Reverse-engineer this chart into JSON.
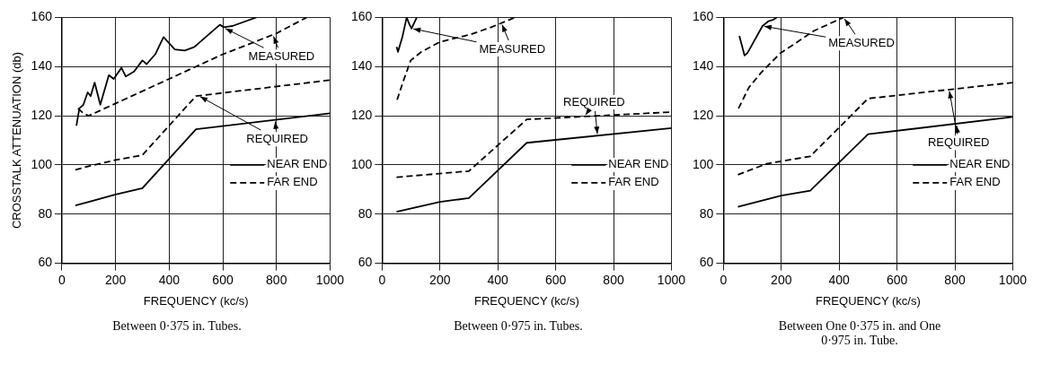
{
  "chart_data": [
    {
      "type": "line",
      "title": "Between 0·375 in. Tubes.",
      "xlabel": "FREQUENCY (kc/s)",
      "ylabel": "CROSSTALK ATTENUATION (db)",
      "xlim": [
        0,
        1000
      ],
      "xticks": [
        0,
        200,
        400,
        600,
        800,
        1000
      ],
      "ylim": [
        60,
        160
      ],
      "yticks": [
        60,
        80,
        100,
        120,
        140,
        160
      ],
      "grid": true,
      "legend": "right",
      "annotations": [
        {
          "text": "MEASURED",
          "x": 604,
          "y": 155.8
        },
        {
          "text": "REQUIRED",
          "x": 510,
          "y": 128.1
        }
      ],
      "series": [
        {
          "color": "#000000",
          "line_style": "solid",
          "x": [
            54,
            65,
            80,
            96,
            107,
            122,
            143,
            175,
            193,
            222,
            238,
            269,
            300,
            316,
            348,
            379,
            421,
            458,
            494,
            536,
            589,
            604,
            636,
            725
          ],
          "values": [
            116,
            123,
            124.5,
            129.5,
            128,
            133.5,
            124.5,
            136.5,
            135,
            139.5,
            136,
            138,
            142.5,
            141,
            145,
            152,
            147,
            146.5,
            148,
            152,
            157,
            156,
            156.5,
            160
          ]
        },
        {
          "color": "#000000",
          "line_style": "dashed",
          "x": [
            60,
            80,
            100,
            200,
            400,
            600,
            800,
            913
          ],
          "values": [
            123,
            121,
            120,
            125,
            135,
            145,
            153.5,
            160
          ]
        },
        {
          "name": "NEAR END",
          "color": "#000000",
          "line_style": "solid",
          "x": [
            50,
            100,
            200,
            300,
            500,
            1000
          ],
          "values": [
            83.5,
            85,
            88,
            90.5,
            114.5,
            121
          ]
        },
        {
          "name": "FAR END",
          "color": "#000000",
          "line_style": "dashed",
          "x": [
            50,
            100,
            200,
            300,
            500,
            1000
          ],
          "values": [
            98,
            99.5,
            102,
            104,
            128,
            134.5
          ]
        }
      ]
    },
    {
      "type": "line",
      "title": "Between 0·975 in. Tubes.",
      "xlabel": "FREQUENCY (kc/s)",
      "xlim": [
        0,
        1000
      ],
      "xticks": [
        0,
        200,
        400,
        600,
        800,
        1000
      ],
      "ylim": [
        60,
        160
      ],
      "yticks": [
        60,
        80,
        100,
        120,
        140,
        160
      ],
      "grid": true,
      "legend": "right",
      "annotations": [
        {
          "text": "MEASURED",
          "x": 102,
          "y": 155.5
        },
        {
          "text": "REQUIRED",
          "x": 700,
          "y": 119.7
        }
      ],
      "series": [
        {
          "color": "#000000",
          "line_style": "solid",
          "x": [
            50,
            55,
            70,
            85,
            95,
            102,
            120
          ],
          "values": [
            148,
            146,
            152,
            160,
            157,
            155.5,
            160
          ]
        },
        {
          "color": "#000000",
          "line_style": "dashed",
          "x": [
            52,
            73,
            99,
            136,
            199,
            304,
            377,
            460
          ],
          "values": [
            126.5,
            134,
            142.5,
            146,
            150,
            153,
            156,
            160
          ]
        },
        {
          "name": "NEAR END",
          "color": "#000000",
          "line_style": "solid",
          "x": [
            50,
            200,
            300,
            500,
            1000
          ],
          "values": [
            81,
            85,
            86.5,
            109,
            115
          ]
        },
        {
          "name": "FAR END",
          "color": "#000000",
          "line_style": "dashed",
          "x": [
            50,
            300,
            500,
            1000
          ],
          "values": [
            95,
            97.5,
            118.5,
            121.5
          ]
        }
      ]
    },
    {
      "type": "line",
      "title": "Between One 0·375 in. and One 0·975 in. Tube.",
      "xlabel": "FREQUENCY (kc/s)",
      "xlim": [
        0,
        1000
      ],
      "xticks": [
        0,
        200,
        400,
        600,
        800,
        1000
      ],
      "ylim": [
        60,
        160
      ],
      "yticks": [
        60,
        80,
        100,
        120,
        140,
        160
      ],
      "grid": true,
      "legend": "right",
      "annotations": [
        {
          "text": "MEASURED",
          "x": 135,
          "y": 156.5
        },
        {
          "text": "REQUIRED",
          "x": 780,
          "y": 130.7
        }
      ],
      "series": [
        {
          "color": "#000000",
          "line_style": "solid",
          "x": [
            55,
            73,
            83,
            135,
            156,
            171,
            184
          ],
          "values": [
            152.5,
            144.5,
            145.5,
            156.5,
            158.5,
            159,
            160
          ]
        },
        {
          "color": "#000000",
          "line_style": "dashed",
          "x": [
            52,
            88,
            130,
            197,
            249,
            312,
            415
          ],
          "values": [
            123,
            131.5,
            137.5,
            145.5,
            149.5,
            154.5,
            160
          ]
        },
        {
          "name": "NEAR END",
          "color": "#000000",
          "line_style": "solid",
          "x": [
            50,
            200,
            300,
            500,
            1000
          ],
          "values": [
            83,
            87.5,
            89.5,
            112.5,
            119.5
          ]
        },
        {
          "name": "FAR END",
          "color": "#000000",
          "line_style": "dashed",
          "x": [
            50,
            150,
            300,
            500,
            1000
          ],
          "values": [
            96,
            100.5,
            103.5,
            127,
            133.5
          ]
        }
      ]
    }
  ]
}
